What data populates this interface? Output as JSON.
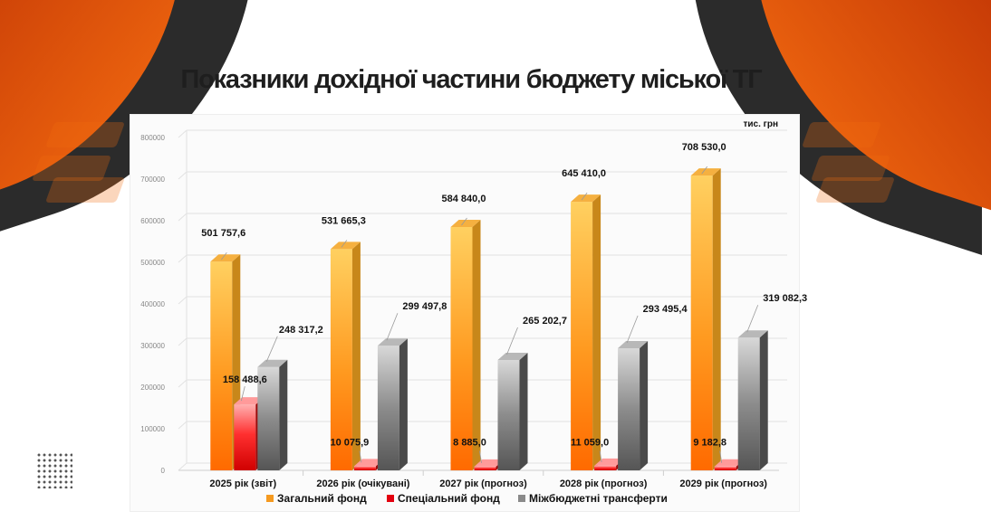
{
  "title": "Показники дохідної частини бюджету міської ТГ",
  "colors": {
    "brand_orange": "#f26a10",
    "brand_dark": "#2b2b2b"
  },
  "chart_data": {
    "type": "bar",
    "unit_label": "тис. грн",
    "categories": [
      "2025 рік (звіт)",
      "2026 рік (очікувані)",
      "2027 рік (прогноз)",
      "2028 рік (прогноз)",
      "2029 рік (прогноз)"
    ],
    "series": [
      {
        "name": "Загальний фонд",
        "color": "#f57c10",
        "values": [
          501757.6,
          531665.3,
          584840.0,
          645410.0,
          708530.0
        ],
        "labels": [
          "501 757,6",
          "531 665,3",
          "584 840,0",
          "645 410,0",
          "708 530,0"
        ]
      },
      {
        "name": "Спеціальний фонд",
        "color": "#e3000f",
        "values": [
          158488.6,
          10075.9,
          8885.0,
          11059.0,
          9182.8
        ],
        "labels": [
          "158 488,6",
          "10 075,9",
          "8 885,0",
          "11 059,0",
          "9 182,8"
        ]
      },
      {
        "name": "Міжбюджетні трансферти",
        "color": "#7a7a7a",
        "values": [
          248317.2,
          299497.8,
          265202.7,
          293495.4,
          319082.3
        ],
        "labels": [
          "248 317,2",
          "299 497,8",
          "265 202,7",
          "293 495,4",
          "319 082,3"
        ]
      }
    ],
    "y_ticks": [
      "0",
      "100000",
      "200000",
      "300000",
      "400000",
      "500000",
      "600000",
      "700000",
      "800000"
    ],
    "ylim": [
      0,
      800000
    ],
    "grid": true,
    "legend_position": "bottom"
  }
}
